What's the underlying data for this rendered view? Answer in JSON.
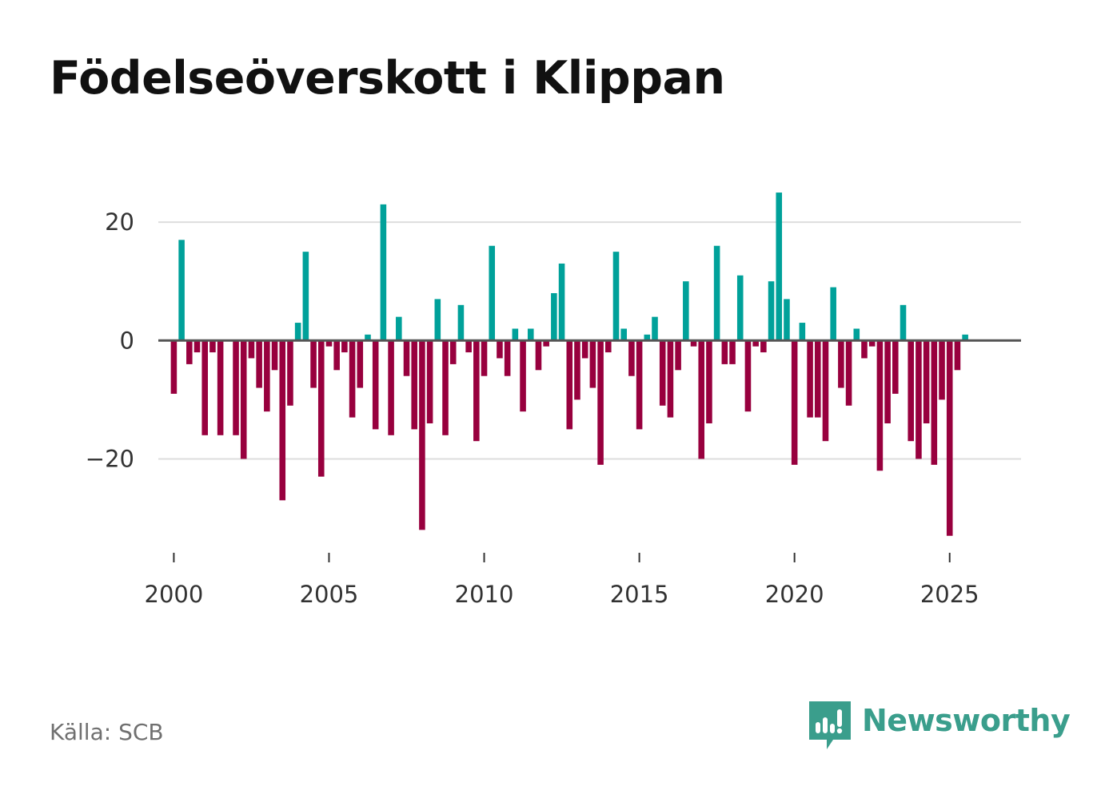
{
  "title": "Födelseöverskott i Klippan",
  "source": "Källa: SCB",
  "brand": {
    "name": "Newsworthy",
    "icon": "newsworthy-logo-icon",
    "color": "#3a9e8c"
  },
  "colors": {
    "positive": "#00a19a",
    "negative": "#98003e",
    "grid": "#dddddd",
    "zero_line": "#555555",
    "text": "#333333"
  },
  "chart_data": {
    "type": "bar",
    "title": "Födelseöverskott i Klippan",
    "xlabel": "",
    "ylabel": "",
    "grid": true,
    "x_start": 2000.0,
    "x_step": 0.25,
    "xlim": [
      1999.5,
      2027.3
    ],
    "ylim": [
      -36,
      30
    ],
    "x_ticks": [
      2000,
      2005,
      2010,
      2015,
      2020,
      2025
    ],
    "x_tick_labels": [
      "2000",
      "2005",
      "2010",
      "2015",
      "2020",
      "2025"
    ],
    "y_ticks": [
      -20,
      0,
      20
    ],
    "y_tick_labels": [
      "−20",
      "0",
      "20"
    ],
    "values": [
      -9,
      17,
      -4,
      -2,
      -16,
      -2,
      -16,
      0,
      -16,
      -20,
      -3,
      -8,
      -12,
      -5,
      -27,
      -11,
      3,
      15,
      -8,
      -23,
      -1,
      -5,
      -2,
      -13,
      -8,
      1,
      -15,
      23,
      -16,
      4,
      -6,
      -15,
      -32,
      -14,
      7,
      -16,
      -4,
      6,
      -2,
      -17,
      -6,
      16,
      -3,
      -6,
      2,
      -12,
      2,
      -5,
      -1,
      8,
      13,
      -15,
      -10,
      -3,
      -8,
      -21,
      -2,
      15,
      2,
      -6,
      -15,
      1,
      4,
      -11,
      -13,
      -5,
      10,
      -1,
      -20,
      -14,
      16,
      -4,
      -4,
      11,
      -12,
      -1,
      -2,
      10,
      25,
      7,
      -21,
      3,
      -13,
      -13,
      -17,
      9,
      -8,
      -11,
      2,
      -3,
      -1,
      -22,
      -14,
      -9,
      6,
      -17,
      -20,
      -14,
      -21,
      -10,
      -33,
      -5,
      1
    ]
  }
}
